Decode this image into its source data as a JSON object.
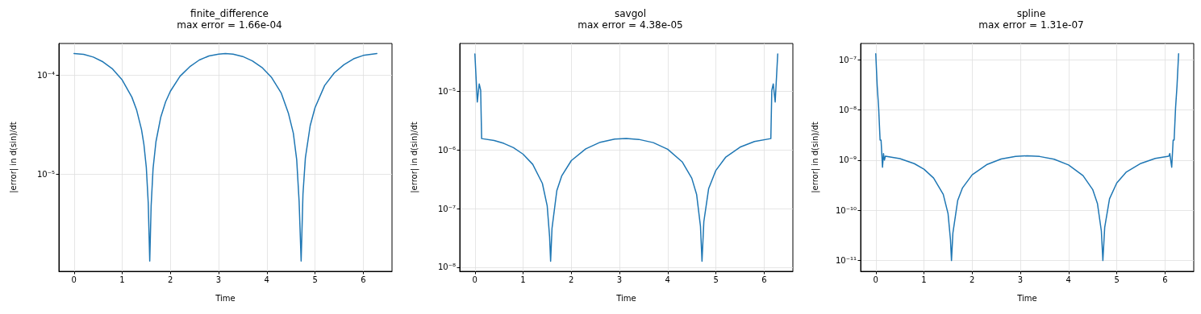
{
  "chart_data": [
    {
      "type": "line",
      "title": "finite_difference",
      "subtitle": "max error = 1.66e-04",
      "xlabel": "Time",
      "ylabel": "|error| in d(sin)/dt",
      "log": "y",
      "grid": true,
      "xlim": [
        -0.314,
        6.597
      ],
      "xticks": [
        0,
        1,
        2,
        3,
        4,
        5,
        6
      ],
      "ylim": [
        1.04e-06,
        0.00021
      ],
      "yticks": [
        {
          "value": 1e-05,
          "label": "10⁻⁵"
        },
        {
          "value": 0.0001,
          "label": "10⁻⁴"
        }
      ],
      "series": [
        {
          "color": "#1f77b4",
          "x": [
            0,
            0.2,
            0.4,
            0.6,
            0.8,
            1.0,
            1.2,
            1.3,
            1.4,
            1.45,
            1.5,
            1.54,
            1.571,
            1.6,
            1.64,
            1.7,
            1.8,
            1.9,
            2.0,
            2.2,
            2.4,
            2.6,
            2.8,
            3.0,
            3.14,
            3.3,
            3.5,
            3.7,
            3.9,
            4.1,
            4.3,
            4.45,
            4.55,
            4.62,
            4.67,
            4.712,
            4.75,
            4.8,
            4.9,
            5.0,
            5.2,
            5.4,
            5.6,
            5.8,
            6.0,
            6.283
          ],
          "values": [
            0.000166,
            0.000163,
            0.000153,
            0.000137,
            0.000116,
            8.97e-05,
            6.02e-05,
            4.44e-05,
            2.83e-05,
            2e-05,
            1.17e-05,
            5.1e-06,
            1.32e-06,
            4.8e-06,
            1.14e-05,
            2.13e-05,
            3.78e-05,
            5.39e-05,
            6.91e-05,
            9.8e-05,
            0.000122,
            0.000143,
            0.000157,
            0.000164,
            0.000166,
            0.000164,
            0.000155,
            0.00014,
            0.00012,
            9.5e-05,
            6.6e-05,
            4.1e-05,
            2.6e-05,
            1.4e-05,
            5.3e-06,
            1.32e-06,
            6.3e-06,
            1.46e-05,
            3.1e-05,
            4.7e-05,
            7.9e-05,
            0.000106,
            0.000128,
            0.000147,
            0.000159,
            0.000166
          ]
        }
      ]
    },
    {
      "type": "line",
      "title": "savgol",
      "subtitle": "max error = 4.38e-05",
      "xlabel": "Time",
      "ylabel": "|error| in d(sin)/dt",
      "log": "y",
      "grid": true,
      "xlim": [
        -0.314,
        6.597
      ],
      "xticks": [
        0,
        1,
        2,
        3,
        4,
        5,
        6
      ],
      "ylim": [
        8.5e-09,
        6.6e-05
      ],
      "yticks": [
        {
          "value": 1e-08,
          "label": "10⁻⁸"
        },
        {
          "value": 1e-07,
          "label": "10⁻⁷"
        },
        {
          "value": 1e-06,
          "label": "10⁻⁶"
        },
        {
          "value": 1e-05,
          "label": "10⁻⁵"
        }
      ],
      "series": [
        {
          "color": "#1f77b4",
          "x": [
            0,
            0.05,
            0.09,
            0.12,
            0.14,
            0.4,
            0.6,
            0.8,
            1.0,
            1.2,
            1.4,
            1.5,
            1.55,
            1.571,
            1.6,
            1.7,
            1.8,
            2.0,
            2.3,
            2.6,
            2.9,
            3.14,
            3.4,
            3.7,
            4.0,
            4.3,
            4.5,
            4.6,
            4.68,
            4.712,
            4.75,
            4.85,
            5.0,
            5.2,
            5.5,
            5.8,
            6.14,
            6.16,
            6.19,
            6.23,
            6.283
          ],
          "values": [
            4.38e-05,
            6.6e-06,
            1.35e-05,
            1.05e-05,
            1.57e-06,
            1.46e-06,
            1.3e-06,
            1.1e-06,
            8.5e-07,
            5.7e-07,
            2.7e-07,
            1.12e-07,
            3.3e-08,
            1.26e-08,
            4.6e-08,
            2.03e-07,
            3.6e-07,
            6.6e-07,
            1.05e-06,
            1.36e-06,
            1.54e-06,
            1.58e-06,
            1.52e-06,
            1.34e-06,
            1.03e-06,
            6.3e-07,
            3.3e-07,
            1.75e-07,
            5e-08,
            1.26e-08,
            6e-08,
            2.2e-07,
            4.5e-07,
            7.5e-07,
            1.12e-06,
            1.4e-06,
            1.57e-06,
            1.05e-05,
            1.35e-05,
            6.6e-06,
            4.38e-05
          ]
        }
      ]
    },
    {
      "type": "line",
      "title": "spline",
      "subtitle": "max error = 1.31e-07",
      "xlabel": "Time",
      "ylabel": "|error| in d(sin)/dt",
      "log": "y",
      "grid": true,
      "xlim": [
        -0.314,
        6.597
      ],
      "xticks": [
        0,
        1,
        2,
        3,
        4,
        5,
        6
      ],
      "ylim": [
        6.1e-12,
        2.1e-07
      ],
      "yticks": [
        {
          "value": 1e-11,
          "label": "10⁻¹¹"
        },
        {
          "value": 1e-10,
          "label": "10⁻¹⁰"
        },
        {
          "value": 1e-09,
          "label": "10⁻⁹"
        },
        {
          "value": 1e-08,
          "label": "10⁻⁸"
        },
        {
          "value": 1e-07,
          "label": "10⁻⁷"
        }
      ],
      "series": [
        {
          "color": "#1f77b4",
          "x": [
            0,
            0.03,
            0.06,
            0.09,
            0.11,
            0.14,
            0.16,
            0.18,
            0.2,
            0.5,
            0.8,
            1.0,
            1.2,
            1.4,
            1.5,
            1.55,
            1.571,
            1.6,
            1.7,
            1.8,
            2.0,
            2.3,
            2.6,
            2.9,
            3.14,
            3.4,
            3.7,
            4.0,
            4.3,
            4.5,
            4.6,
            4.68,
            4.712,
            4.75,
            4.85,
            5.0,
            5.2,
            5.5,
            5.8,
            6.08,
            6.1,
            6.14,
            6.17,
            6.19,
            6.22,
            6.25,
            6.283
          ],
          "values": [
            1.31e-07,
            3e-08,
            1.1e-08,
            2.5e-09,
            2.5e-09,
            7.2e-10,
            1.35e-09,
            1e-09,
            1.2e-09,
            1.07e-09,
            8.5e-10,
            6.6e-10,
            4.4e-10,
            2.08e-10,
            8.6e-11,
            2.6e-11,
            1e-11,
            3.5e-11,
            1.57e-10,
            2.8e-10,
            5.1e-10,
            8.1e-10,
            1.05e-09,
            1.19e-09,
            1.22e-09,
            1.18e-09,
            1.04e-09,
            8e-10,
            4.9e-10,
            2.6e-10,
            1.35e-10,
            3.9e-11,
            1e-11,
            4.6e-11,
            1.7e-10,
            3.5e-10,
            5.8e-10,
            8.6e-10,
            1.08e-09,
            1.2e-09,
            1.35e-09,
            7.2e-10,
            2.5e-09,
            2.5e-09,
            1.1e-08,
            3e-08,
            1.31e-07
          ]
        }
      ]
    }
  ]
}
